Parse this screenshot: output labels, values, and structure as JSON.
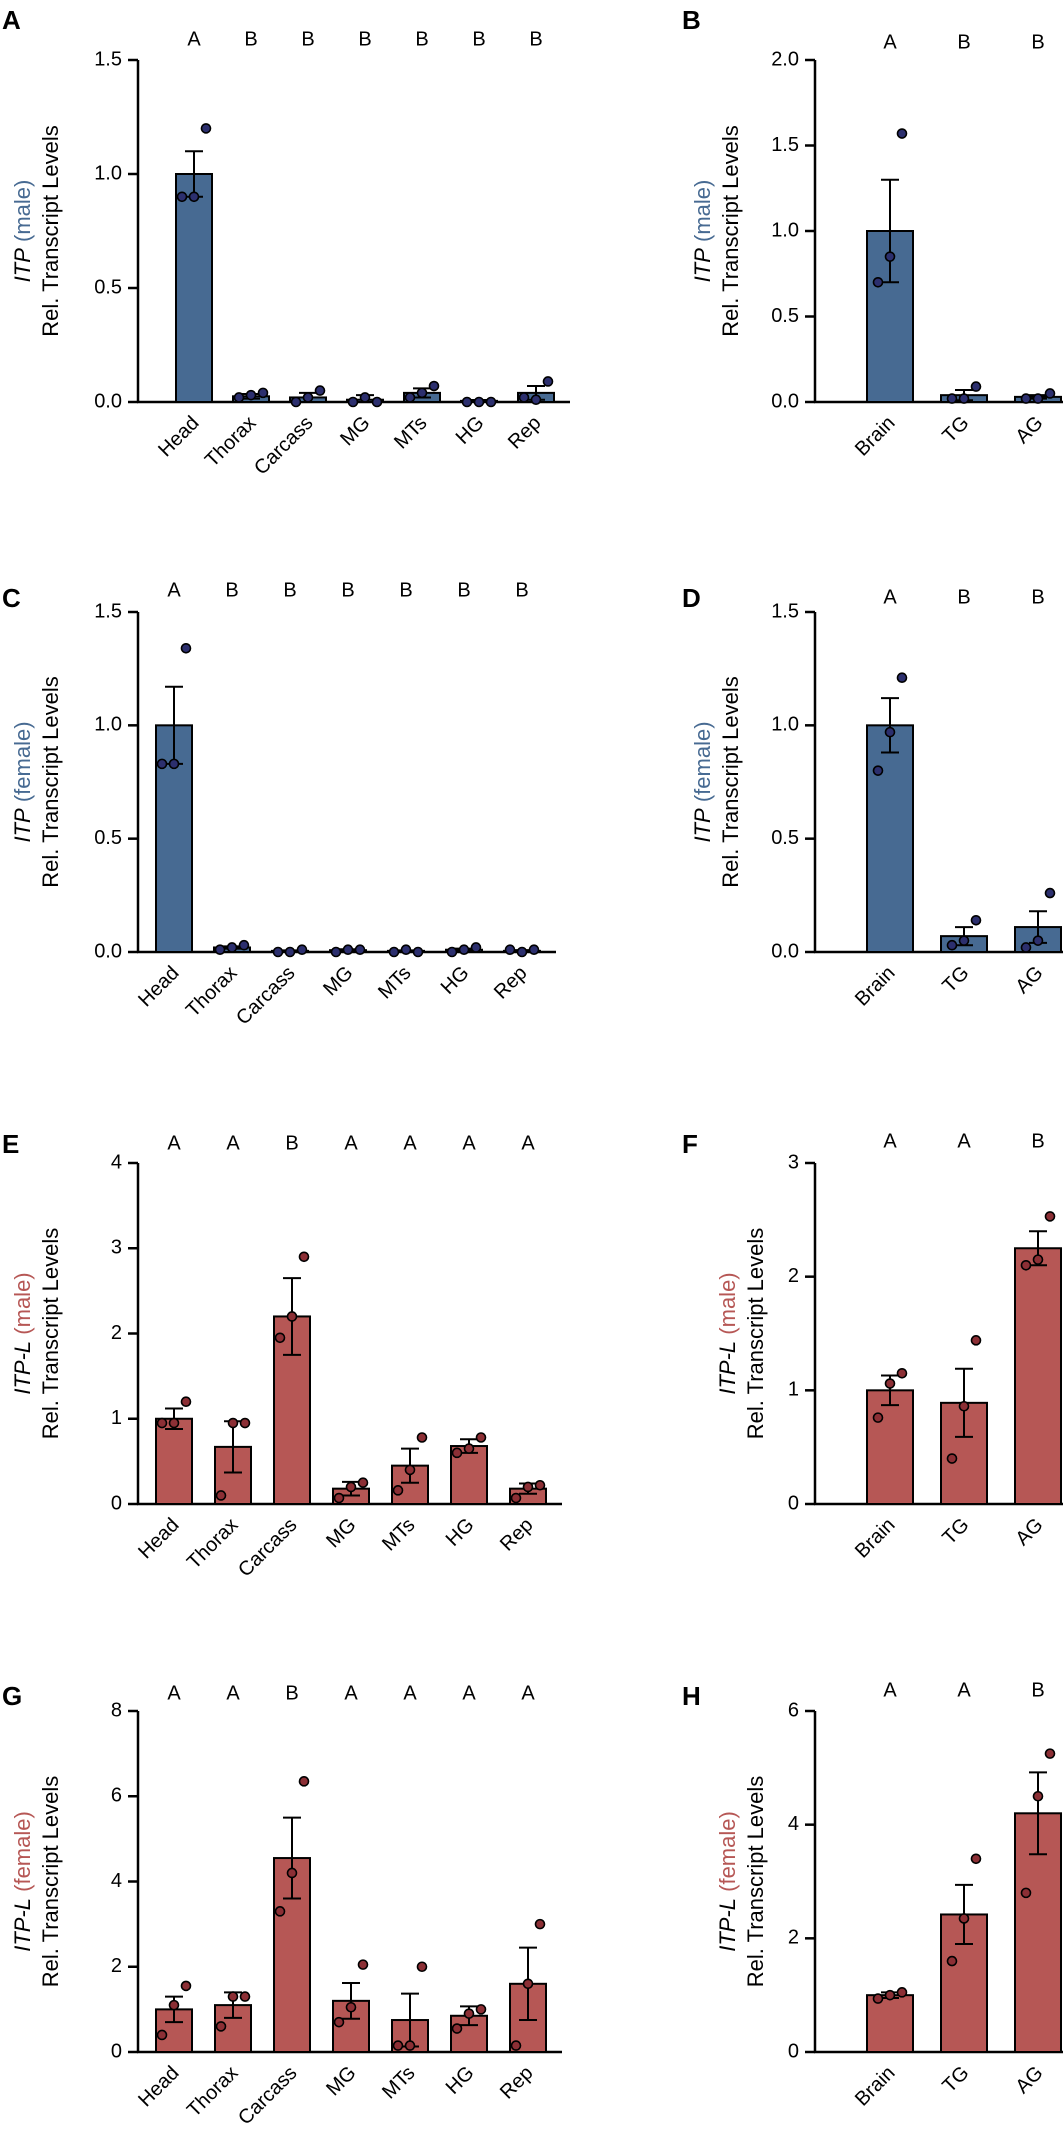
{
  "colors": {
    "blue": "#476a92",
    "red": "#b65755",
    "axis": "#000000",
    "dot_fill_blue": "#2c2f6e",
    "dot_fill_red": "#8c2f35"
  },
  "chart_data": [
    {
      "panel": "A",
      "type": "bar",
      "gene": "ITP",
      "sex": "(male)",
      "ylabel": "Rel. Transcript Levels",
      "categories": [
        "Head",
        "Thorax",
        "Carcass",
        "MG",
        "MTs",
        "HG",
        "Rep"
      ],
      "values": [
        1.0,
        0.025,
        0.02,
        0.01,
        0.04,
        0.005,
        0.04
      ],
      "errors": [
        0.1,
        0.01,
        0.02,
        0.02,
        0.02,
        0.004,
        0.03
      ],
      "points": [
        [
          0.9,
          0.9,
          1.2
        ],
        [
          0.02,
          0.03,
          0.04
        ],
        [
          0.0,
          0.02,
          0.05
        ],
        [
          0.0,
          0.02,
          0.0
        ],
        [
          0.02,
          0.04,
          0.07
        ],
        [
          0.0,
          0.0,
          0.0
        ],
        [
          0.02,
          0.01,
          0.09
        ]
      ],
      "letters": [
        "A",
        "B",
        "B",
        "B",
        "B",
        "B",
        "B"
      ],
      "ylim": [
        0,
        1.5
      ],
      "yticks": [
        "0.0",
        "0.5",
        "1.0",
        "1.5"
      ],
      "color": "blue"
    },
    {
      "panel": "B",
      "type": "bar",
      "gene": "ITP",
      "sex": "(male)",
      "ylabel": "Rel. Transcript Levels",
      "categories": [
        "Brain",
        "TG",
        "AG"
      ],
      "values": [
        1.0,
        0.04,
        0.03
      ],
      "errors": [
        0.3,
        0.03,
        0.01
      ],
      "points": [
        [
          0.7,
          0.85,
          1.57
        ],
        [
          0.02,
          0.02,
          0.09
        ],
        [
          0.02,
          0.02,
          0.05
        ]
      ],
      "letters": [
        "A",
        "B",
        "B"
      ],
      "ylim": [
        0,
        2.0
      ],
      "yticks": [
        "0.0",
        "0.5",
        "1.0",
        "1.5",
        "2.0"
      ],
      "color": "blue"
    },
    {
      "panel": "C",
      "type": "bar",
      "gene": "ITP",
      "sex": "(female)",
      "ylabel": "Rel. Transcript Levels",
      "categories": [
        "Head",
        "Thorax",
        "Carcass",
        "MG",
        "MTs",
        "HG",
        "Rep"
      ],
      "values": [
        1.0,
        0.02,
        0.005,
        0.008,
        0.005,
        0.01,
        0.005
      ],
      "errors": [
        0.17,
        0.005,
        0.002,
        0.004,
        0.002,
        0.005,
        0.003
      ],
      "points": [
        [
          0.83,
          0.83,
          1.34
        ],
        [
          0.01,
          0.02,
          0.03
        ],
        [
          0.0,
          0.0,
          0.01
        ],
        [
          0.0,
          0.01,
          0.01
        ],
        [
          0.0,
          0.01,
          0.0
        ],
        [
          0.0,
          0.01,
          0.02
        ],
        [
          0.01,
          0.0,
          0.01
        ]
      ],
      "letters": [
        "A",
        "B",
        "B",
        "B",
        "B",
        "B",
        "B"
      ],
      "ylim": [
        0,
        1.5
      ],
      "yticks": [
        "0.0",
        "0.5",
        "1.0",
        "1.5"
      ],
      "color": "blue"
    },
    {
      "panel": "D",
      "type": "bar",
      "gene": "ITP",
      "sex": "(female)",
      "ylabel": "Rel. Transcript Levels",
      "categories": [
        "Brain",
        "TG",
        "AG"
      ],
      "values": [
        1.0,
        0.07,
        0.11
      ],
      "errors": [
        0.12,
        0.04,
        0.07
      ],
      "points": [
        [
          0.8,
          0.97,
          1.21
        ],
        [
          0.03,
          0.05,
          0.14
        ],
        [
          0.02,
          0.05,
          0.26
        ]
      ],
      "letters": [
        "A",
        "B",
        "B"
      ],
      "ylim": [
        0,
        1.5
      ],
      "yticks": [
        "0.0",
        "0.5",
        "1.0",
        "1.5"
      ],
      "color": "blue"
    },
    {
      "panel": "E",
      "type": "bar",
      "gene": "ITP-L",
      "sex": "(male)",
      "ylabel": "Rel. Transcript Levels",
      "categories": [
        "Head",
        "Thorax",
        "Carcass",
        "MG",
        "MTs",
        "HG",
        "Rep"
      ],
      "values": [
        1.0,
        0.67,
        2.2,
        0.18,
        0.45,
        0.68,
        0.18
      ],
      "errors": [
        0.12,
        0.3,
        0.45,
        0.08,
        0.2,
        0.08,
        0.06
      ],
      "points": [
        [
          0.95,
          0.95,
          1.2
        ],
        [
          0.1,
          0.95,
          0.95
        ],
        [
          1.95,
          2.2,
          2.9
        ],
        [
          0.07,
          0.2,
          0.25
        ],
        [
          0.16,
          0.4,
          0.78
        ],
        [
          0.6,
          0.65,
          0.78
        ],
        [
          0.07,
          0.2,
          0.22
        ]
      ],
      "letters": [
        "A",
        "A",
        "B",
        "A",
        "A",
        "A",
        "A"
      ],
      "ylim": [
        0,
        4
      ],
      "yticks": [
        "0",
        "1",
        "2",
        "3",
        "4"
      ],
      "color": "red"
    },
    {
      "panel": "F",
      "type": "bar",
      "gene": "ITP-L",
      "sex": "(male)",
      "ylabel": "Rel. Transcript Levels",
      "categories": [
        "Brain",
        "TG",
        "AG"
      ],
      "values": [
        1.0,
        0.89,
        2.25
      ],
      "errors": [
        0.13,
        0.3,
        0.15
      ],
      "points": [
        [
          0.76,
          1.06,
          1.15
        ],
        [
          0.4,
          0.86,
          1.44
        ],
        [
          2.1,
          2.15,
          2.53
        ]
      ],
      "letters": [
        "A",
        "A",
        "B"
      ],
      "ylim": [
        0,
        3
      ],
      "yticks": [
        "0",
        "1",
        "2",
        "3"
      ],
      "color": "red"
    },
    {
      "panel": "G",
      "type": "bar",
      "gene": "ITP-L",
      "sex": "(female)",
      "ylabel": "Rel. Transcript Levels",
      "categories": [
        "Head",
        "Thorax",
        "Carcass",
        "MG",
        "MTs",
        "HG",
        "Rep"
      ],
      "values": [
        1.0,
        1.1,
        4.55,
        1.2,
        0.75,
        0.85,
        1.6
      ],
      "errors": [
        0.3,
        0.3,
        0.95,
        0.42,
        0.62,
        0.22,
        0.85
      ],
      "points": [
        [
          0.4,
          1.1,
          1.55
        ],
        [
          0.6,
          1.3,
          1.3
        ],
        [
          3.3,
          4.2,
          6.35
        ],
        [
          0.7,
          1.05,
          2.05
        ],
        [
          0.15,
          0.15,
          2.0
        ],
        [
          0.55,
          0.9,
          1.0
        ],
        [
          0.15,
          1.6,
          3.0
        ]
      ],
      "letters": [
        "A",
        "A",
        "B",
        "A",
        "A",
        "A",
        "A"
      ],
      "ylim": [
        0,
        8
      ],
      "yticks": [
        "0",
        "2",
        "4",
        "6",
        "8"
      ],
      "color": "red"
    },
    {
      "panel": "H",
      "type": "bar",
      "gene": "ITP-L",
      "sex": "(female)",
      "ylabel": "Rel. Transcript Levels",
      "categories": [
        "Brain",
        "TG",
        "AG"
      ],
      "values": [
        1.0,
        2.42,
        4.2
      ],
      "errors": [
        0.05,
        0.52,
        0.72
      ],
      "points": [
        [
          0.94,
          1.0,
          1.05
        ],
        [
          1.6,
          2.35,
          3.4
        ],
        [
          2.8,
          4.5,
          5.25
        ]
      ],
      "letters": [
        "A",
        "A",
        "B"
      ],
      "ylim": [
        0,
        6
      ],
      "yticks": [
        "0",
        "2",
        "4",
        "6"
      ],
      "color": "red"
    }
  ]
}
